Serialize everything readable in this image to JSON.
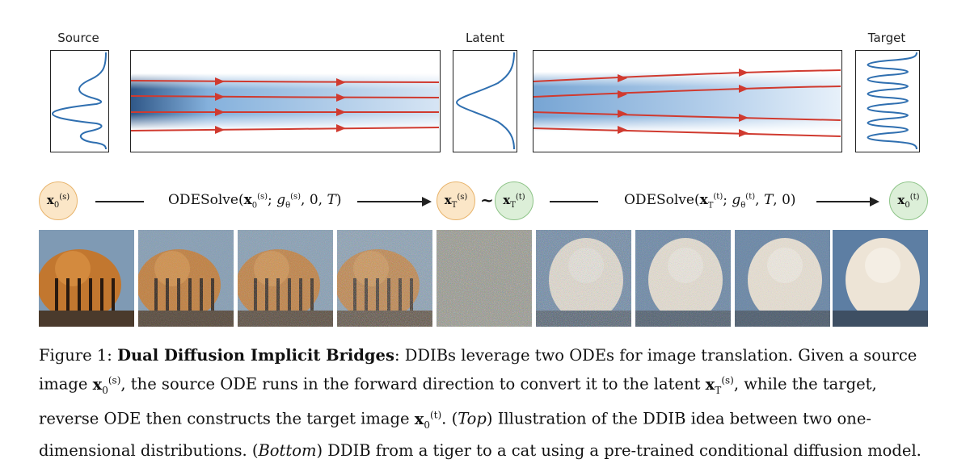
{
  "labels": {
    "source": "Source",
    "latent": "Latent",
    "target": "Target"
  },
  "nodes": {
    "x0s": "x0(s)",
    "xTs": "xT(s)",
    "xTt": "xT(t)",
    "x0t": "x0(t)",
    "tilde": "~"
  },
  "equations": {
    "forward": "ODESolve(x0(s); gθ(s), 0, T)",
    "reverse": "ODESolve(xT(t); gθ(t), T, 0)"
  },
  "colors": {
    "source_node_fill": "#fbe6c7",
    "target_node_fill": "#dcefd8",
    "flow_line": "#d03a2f",
    "density_curve": "#2f6fb0",
    "density_field": "#3b7fc0"
  },
  "images": [
    {
      "name": "tiger-original",
      "noise": 0.0
    },
    {
      "name": "tiger-noise-1",
      "noise": 0.45
    },
    {
      "name": "tiger-noise-2",
      "noise": 0.6
    },
    {
      "name": "tiger-noise-3",
      "noise": 0.78
    },
    {
      "name": "latent-noise",
      "noise": 1.0
    },
    {
      "name": "cat-noise-3",
      "noise": 0.78
    },
    {
      "name": "cat-noise-2",
      "noise": 0.6
    },
    {
      "name": "cat-noise-1",
      "noise": 0.45
    },
    {
      "name": "cat-result",
      "noise": 0.0
    }
  ],
  "caption": {
    "figure_label": "Figure 1:",
    "title": "Dual Diffusion Implicit Bridges",
    "text1": ": DDIBs leverage two ODEs for image translation. Given a source image",
    "text2": ", the source ODE runs in the forward direction to convert it to the latent",
    "text3": ", while the target, reverse ODE then constructs the target image",
    "text4": ". (",
    "top": "Top",
    "text5": ") Illustration of the DDIB idea between two one-dimensional distributions. (",
    "bottom": "Bottom",
    "text6": ") DDIB from a tiger to a cat using a pre-trained conditional diffusion model."
  }
}
